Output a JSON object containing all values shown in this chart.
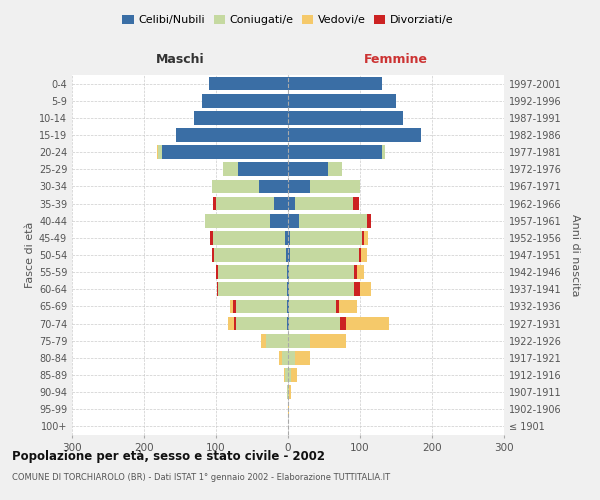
{
  "age_groups": [
    "100+",
    "95-99",
    "90-94",
    "85-89",
    "80-84",
    "75-79",
    "70-74",
    "65-69",
    "60-64",
    "55-59",
    "50-54",
    "45-49",
    "40-44",
    "35-39",
    "30-34",
    "25-29",
    "20-24",
    "15-19",
    "10-14",
    "5-9",
    "0-4"
  ],
  "birth_years": [
    "≤ 1901",
    "1902-1906",
    "1907-1911",
    "1912-1916",
    "1917-1921",
    "1922-1926",
    "1927-1931",
    "1932-1936",
    "1937-1941",
    "1942-1946",
    "1947-1951",
    "1952-1956",
    "1957-1961",
    "1962-1966",
    "1967-1971",
    "1972-1976",
    "1977-1981",
    "1982-1986",
    "1987-1991",
    "1992-1996",
    "1997-2001"
  ],
  "maschi": {
    "celibi": [
      0,
      0,
      0,
      0,
      0,
      0,
      2,
      2,
      2,
      2,
      3,
      4,
      25,
      20,
      40,
      70,
      175,
      155,
      130,
      120,
      110
    ],
    "coniugati": [
      0,
      0,
      1,
      4,
      8,
      30,
      70,
      70,
      95,
      95,
      100,
      100,
      90,
      80,
      65,
      20,
      5,
      0,
      0,
      0,
      0
    ],
    "vedovi": [
      0,
      0,
      0,
      2,
      4,
      8,
      8,
      3,
      0,
      0,
      0,
      0,
      0,
      0,
      0,
      0,
      2,
      0,
      0,
      0,
      0
    ],
    "divorziati": [
      0,
      0,
      0,
      0,
      0,
      0,
      3,
      5,
      2,
      3,
      3,
      5,
      0,
      4,
      0,
      0,
      0,
      0,
      0,
      0,
      0
    ]
  },
  "femmine": {
    "nubili": [
      0,
      0,
      0,
      0,
      0,
      0,
      2,
      2,
      2,
      2,
      3,
      3,
      15,
      10,
      30,
      55,
      130,
      185,
      160,
      150,
      130
    ],
    "coniugate": [
      0,
      0,
      1,
      4,
      10,
      30,
      70,
      65,
      90,
      90,
      95,
      100,
      95,
      80,
      70,
      20,
      5,
      0,
      0,
      0,
      0
    ],
    "vedove": [
      0,
      2,
      3,
      8,
      20,
      50,
      60,
      25,
      15,
      10,
      8,
      5,
      0,
      0,
      0,
      0,
      0,
      0,
      0,
      0,
      0
    ],
    "divorziate": [
      0,
      0,
      0,
      0,
      0,
      0,
      8,
      4,
      8,
      4,
      4,
      3,
      5,
      8,
      0,
      0,
      0,
      0,
      0,
      0,
      0
    ]
  },
  "colors": {
    "celibi": "#3a6ea5",
    "coniugati": "#c5d9a0",
    "vedovi": "#f5c96a",
    "divorziati": "#cc2222"
  },
  "xlim": 300,
  "title": "Popolazione per età, sesso e stato civile - 2002",
  "subtitle": "COMUNE DI TORCHIAROLO (BR) - Dati ISTAT 1° gennaio 2002 - Elaborazione TUTTITALIA.IT",
  "ylabel_left": "Fasce di età",
  "ylabel_right": "Anni di nascita",
  "xlabel_maschi": "Maschi",
  "xlabel_femmine": "Femmine",
  "bg_color": "#f0f0f0",
  "plot_bg": "#ffffff"
}
